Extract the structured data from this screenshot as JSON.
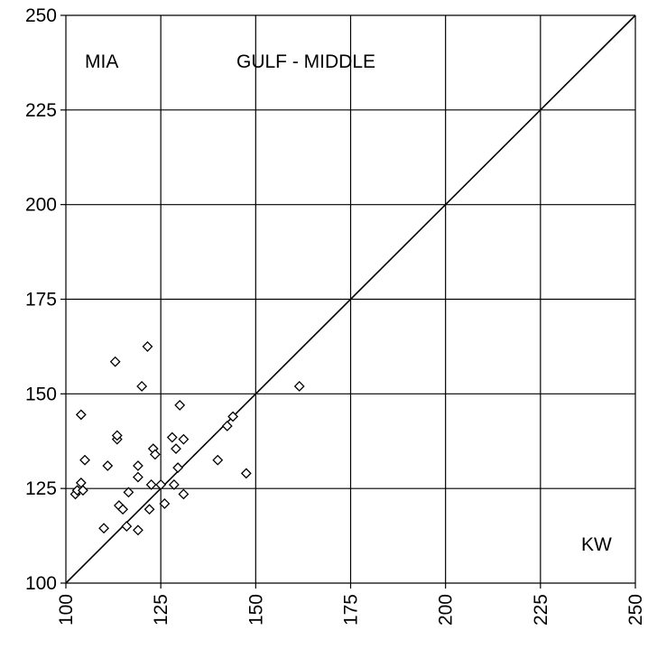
{
  "chart_data": {
    "type": "scatter",
    "title": "GULF - MIDDLE",
    "xlabel": "KW",
    "ylabel": "MIA",
    "xlim": [
      100,
      250
    ],
    "ylim": [
      100,
      250
    ],
    "x_ticks": [
      "100",
      "125",
      "150",
      "175",
      "200",
      "225",
      "250"
    ],
    "y_ticks": [
      "100",
      "125",
      "150",
      "175",
      "200",
      "225",
      "250"
    ],
    "grid": true,
    "marker": "diamond",
    "reference_line": {
      "type": "identity",
      "from": [
        100,
        100
      ],
      "to": [
        250,
        250
      ]
    },
    "series": [
      {
        "points": [
          [
            102.5,
            123.5
          ],
          [
            103.0,
            124.5
          ],
          [
            104.0,
            126.5
          ],
          [
            104.0,
            144.5
          ],
          [
            104.5,
            124.5
          ],
          [
            105.0,
            132.5
          ],
          [
            110.0,
            114.5
          ],
          [
            111.0,
            131.0
          ],
          [
            113.0,
            158.5
          ],
          [
            113.5,
            138.0
          ],
          [
            113.5,
            139.0
          ],
          [
            114.0,
            120.5
          ],
          [
            115.0,
            119.5
          ],
          [
            116.0,
            115.0
          ],
          [
            116.5,
            124.0
          ],
          [
            119.0,
            114.0
          ],
          [
            119.0,
            131.0
          ],
          [
            119.0,
            128.0
          ],
          [
            120.0,
            152.0
          ],
          [
            121.5,
            162.5
          ],
          [
            122.0,
            119.5
          ],
          [
            122.5,
            126.0
          ],
          [
            123.0,
            135.5
          ],
          [
            123.5,
            134.0
          ],
          [
            125.0,
            126.0
          ],
          [
            126.0,
            121.0
          ],
          [
            128.0,
            138.5
          ],
          [
            128.5,
            126.0
          ],
          [
            129.0,
            135.5
          ],
          [
            129.5,
            130.5
          ],
          [
            130.0,
            147.0
          ],
          [
            131.0,
            123.5
          ],
          [
            131.0,
            138.0
          ],
          [
            140.0,
            132.5
          ],
          [
            142.5,
            141.5
          ],
          [
            144.0,
            144.0
          ],
          [
            147.5,
            129.0
          ],
          [
            161.5,
            152.0
          ]
        ]
      }
    ]
  }
}
